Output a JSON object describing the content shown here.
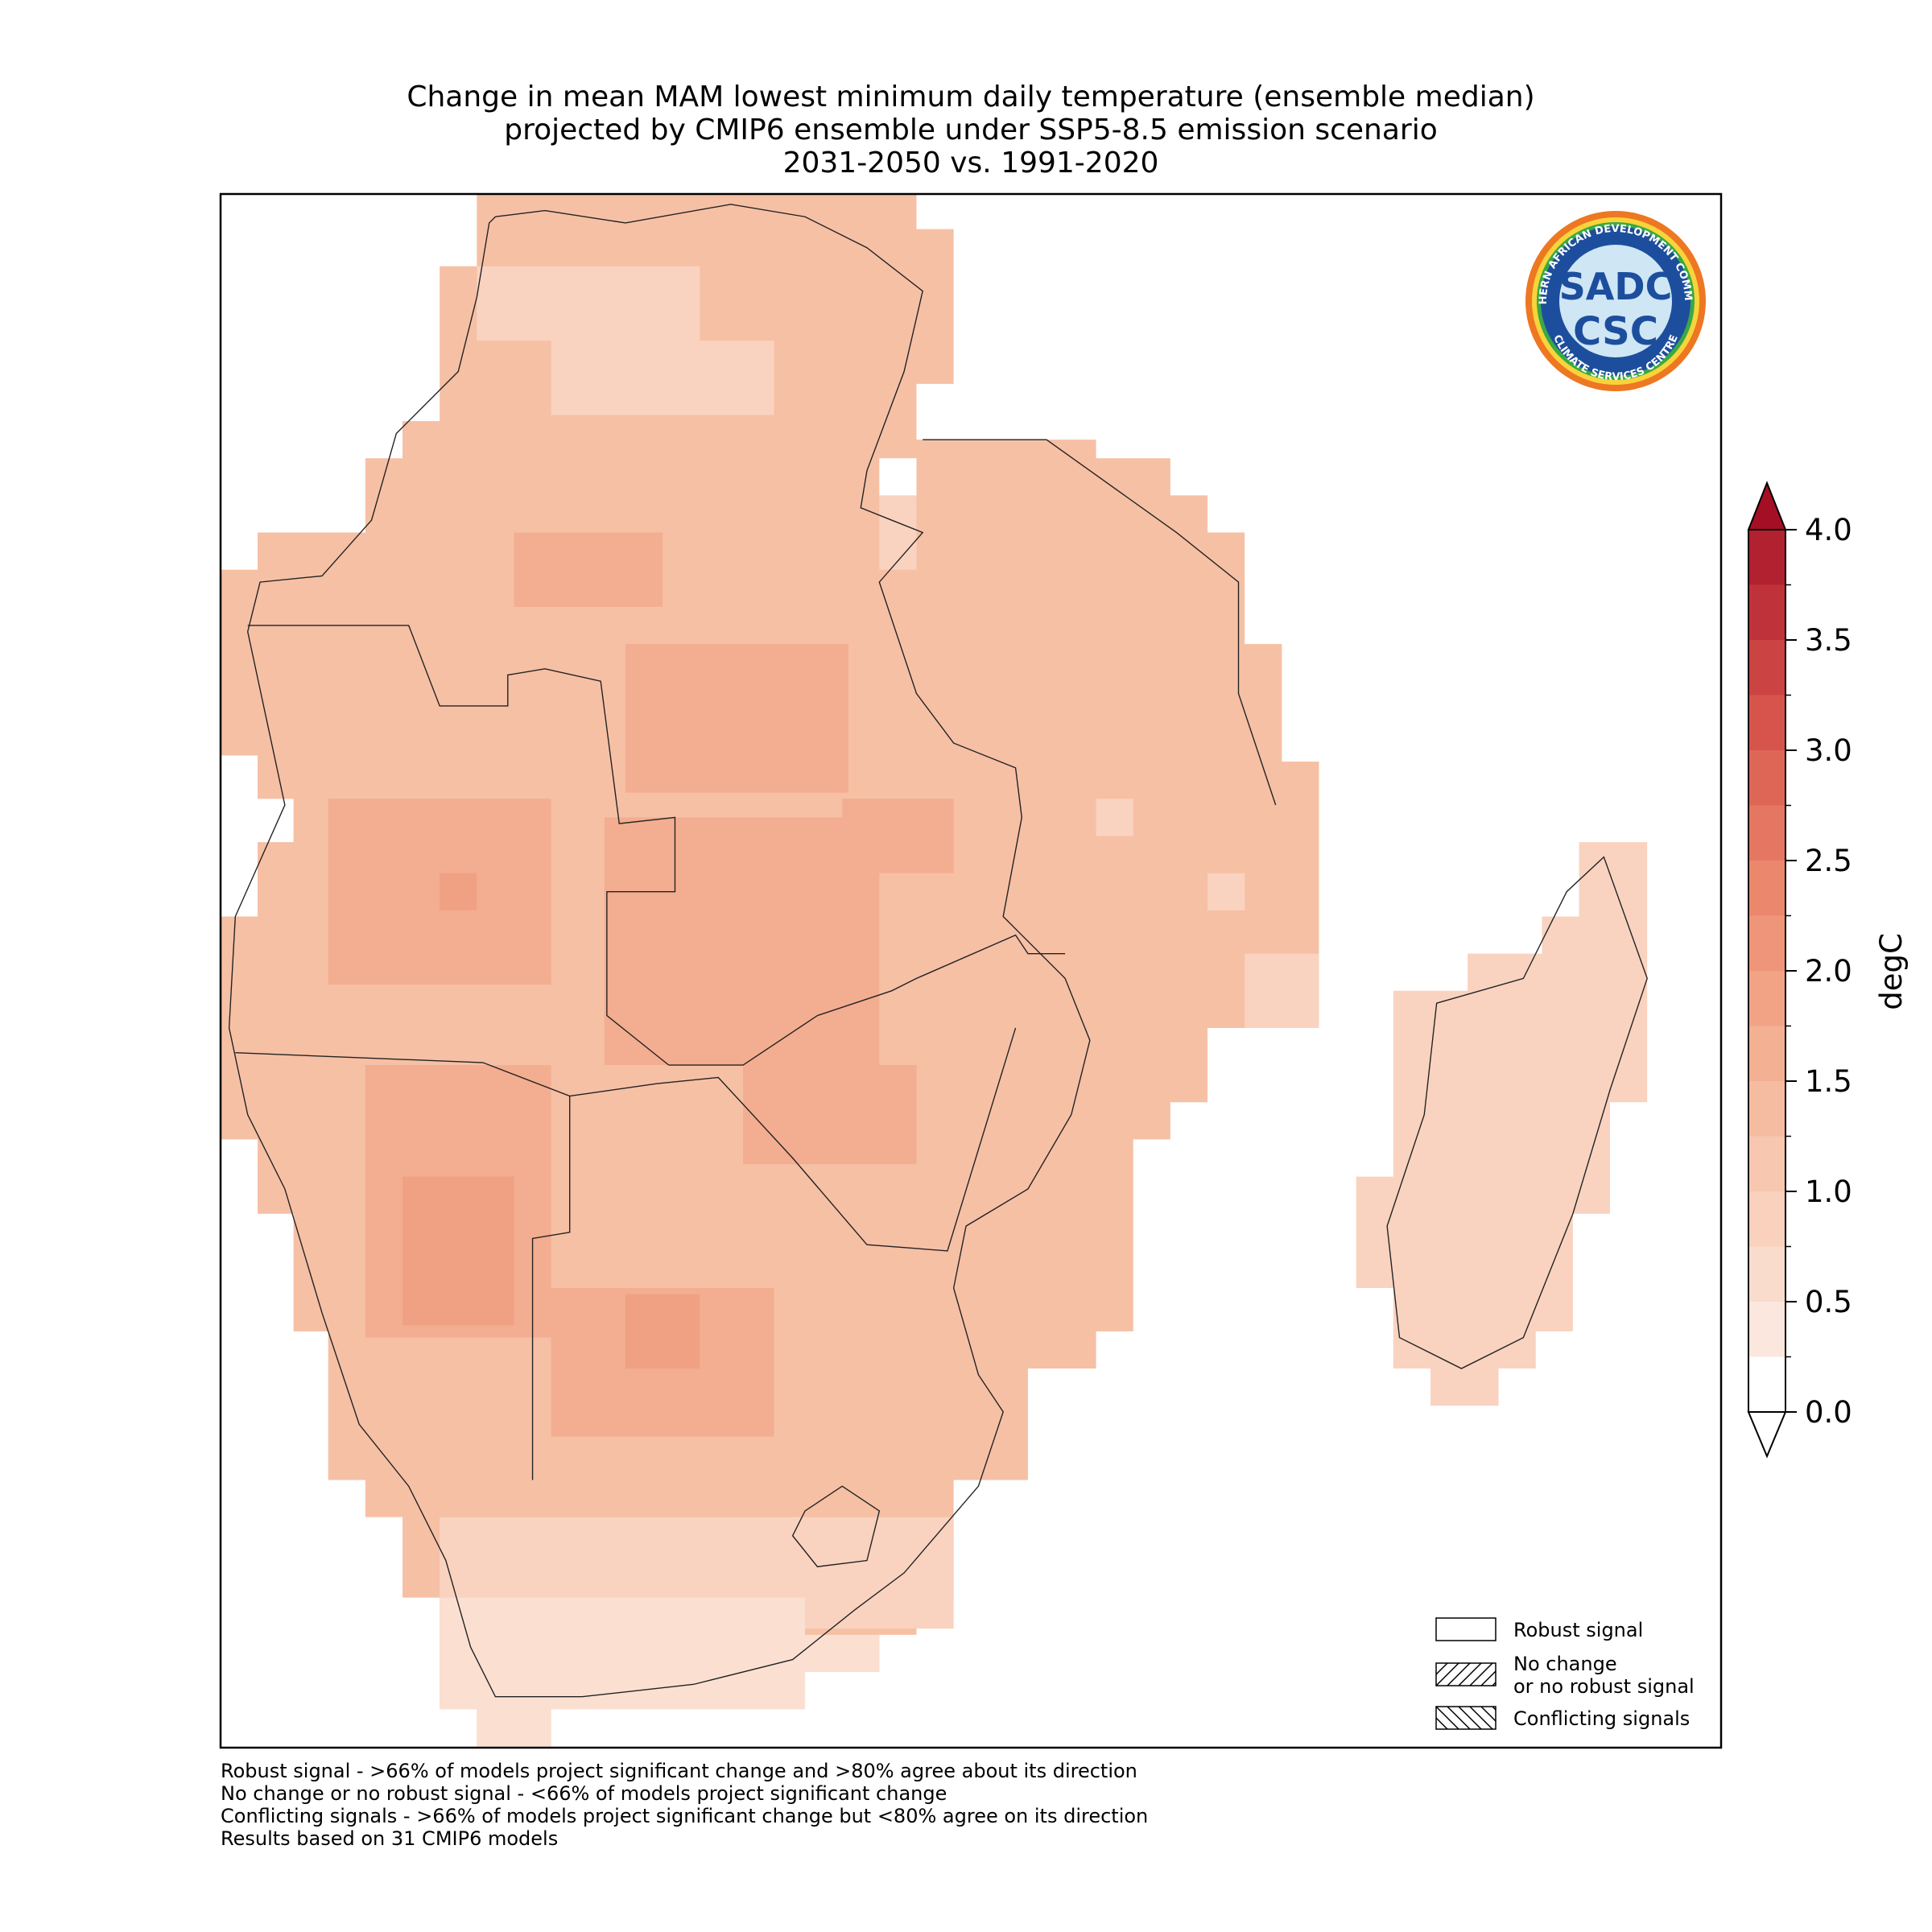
{
  "title": [
    "Change in mean MAM lowest minimum daily temperature (ensemble median)",
    "projected by CMIP6 ensemble under SSP5-8.5 emission scenario",
    "2031-2050 vs. 1991-2020"
  ],
  "logo": {
    "ring_top": "SOUTHERN AFRICAN DEVELOPMENT COMMUNITY",
    "ring_bottom": "CLIMATE SERVICES CENTRE",
    "upper": "SADC",
    "lower": "CSC"
  },
  "colorbar": {
    "label": "degC",
    "lim": [
      0,
      4
    ],
    "ticks": [
      {
        "value": 0,
        "label": "0.0"
      },
      {
        "value": 0.5,
        "label": "0.5"
      },
      {
        "value": 1,
        "label": "1.0"
      },
      {
        "value": 1.5,
        "label": "1.5"
      },
      {
        "value": 2,
        "label": "2.0"
      },
      {
        "value": 2.5,
        "label": "2.5"
      },
      {
        "value": 3,
        "label": "3.0"
      },
      {
        "value": 3.5,
        "label": "3.5"
      },
      {
        "value": 4,
        "label": "4.0"
      }
    ],
    "colors": [
      "#ffffff",
      "#fbe7dd",
      "#fadccd",
      "#f9d1bd",
      "#f7c7b0",
      "#f6bca1",
      "#f4b093",
      "#f2a385",
      "#ef9579",
      "#eb876d",
      "#e57762",
      "#de6657",
      "#d6544c",
      "#cc4343",
      "#c0323a",
      "#b12130"
    ],
    "over_color": "#a50f26",
    "under_color": "#ffffff"
  },
  "legend": [
    {
      "label": [
        "Robust signal"
      ],
      "hatch": "none"
    },
    {
      "label": [
        "No change",
        "or no robust signal"
      ],
      "hatch": "forward"
    },
    {
      "label": [
        "Conflicting signals"
      ],
      "hatch": "back"
    }
  ],
  "notes": [
    "Robust signal - >66% of models project significant change and >80% agree about its direction",
    "No change or no robust signal - <66% of models project significant change",
    "Conflicting signals - >66% of models project significant change but <80% agree on its direction",
    "Results based on 31 CMIP6 models"
  ]
}
